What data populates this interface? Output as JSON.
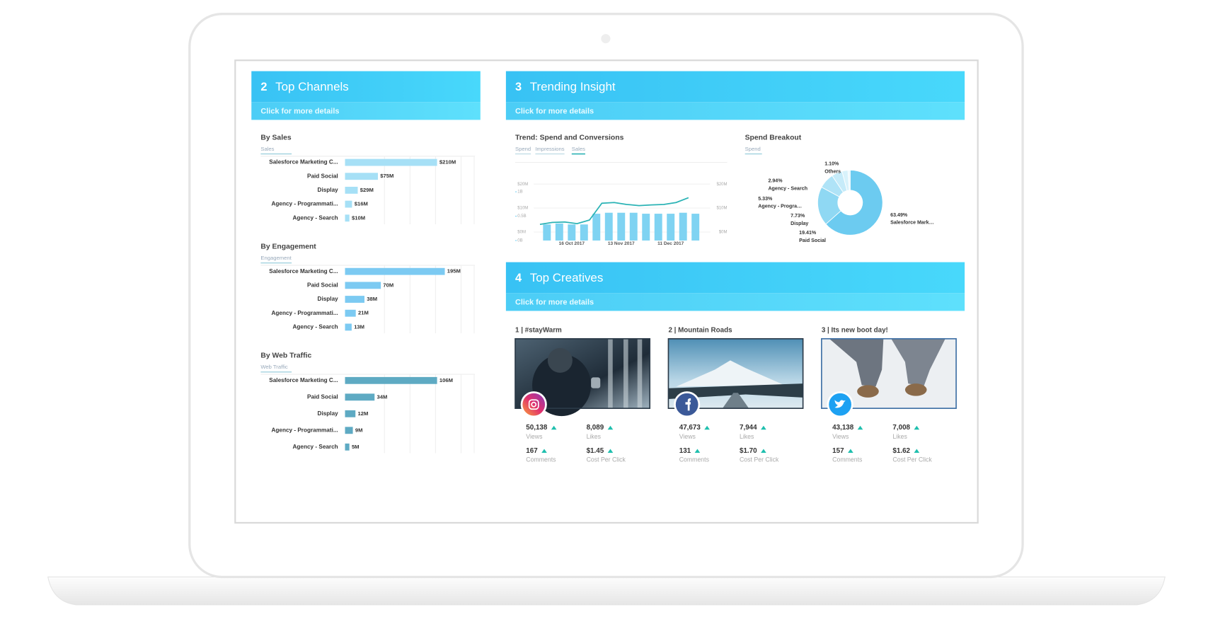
{
  "top_channels": {
    "number": "2",
    "title": "Top Channels",
    "link": "Click for more details",
    "charts": [
      {
        "type": "bar",
        "title": "By Sales",
        "subtitle": "Sales",
        "categories": [
          "Salesforce Marketing C...",
          "Paid Social",
          "Display",
          "Agency - Programmati...",
          "Agency - Search"
        ],
        "values": [
          210,
          75,
          29,
          16,
          10
        ],
        "value_labels": [
          "$210M",
          "$75M",
          "$29M",
          "$16M",
          "$10M"
        ],
        "color": "#a6e0f6"
      },
      {
        "type": "bar",
        "title": "By Engagement",
        "subtitle": "Engagement",
        "categories": [
          "Salesforce Marketing C...",
          "Paid Social",
          "Display",
          "Agency - Programmati...",
          "Agency - Search"
        ],
        "values": [
          195,
          70,
          38,
          21,
          13
        ],
        "value_labels": [
          "195M",
          "70M",
          "38M",
          "21M",
          "13M"
        ],
        "color": "#7ccaf2"
      },
      {
        "type": "bar",
        "title": "By Web Traffic",
        "subtitle": "Web Traffic",
        "categories": [
          "Salesforce Marketing C...",
          "Paid Social",
          "Display",
          "Agency - Programmati...",
          "Agency - Search"
        ],
        "values": [
          106,
          34,
          12,
          9,
          5
        ],
        "value_labels": [
          "106M",
          "34M",
          "12M",
          "9M",
          "5M"
        ],
        "color": "#5eaac3"
      }
    ]
  },
  "trending": {
    "number": "3",
    "title": "Trending Insight",
    "link": "Click for more details",
    "trend": {
      "type": "bar-line",
      "title": "Trend: Spend and Conversions",
      "tabs": [
        "Spend",
        "Impressions",
        "Sales"
      ],
      "categories": [
        null,
        null,
        "16 Oct 2017",
        null,
        null,
        null,
        "13 Nov 2017",
        null,
        null,
        null,
        "11 Dec 2017",
        null,
        null
      ],
      "ylim": [
        0,
        20
      ],
      "yticks": [
        {
          "value": 20,
          "label": "$20M"
        },
        {
          "value": 10,
          "label": "$10M"
        },
        {
          "value": 0,
          "label": "$0M"
        }
      ],
      "y2lim": [
        0,
        1
      ],
      "y2ticks": [
        {
          "value": 1,
          "label": "1B"
        },
        {
          "value": 0.5,
          "label": "0.5B"
        },
        {
          "value": 0,
          "label": "0B"
        }
      ],
      "right_yticks": [
        {
          "value": 20,
          "label": "$20M"
        },
        {
          "value": 10,
          "label": "$10M"
        },
        {
          "value": 0,
          "label": "$0M"
        }
      ],
      "series": [
        {
          "type": "bar",
          "axis": "y2",
          "color": "#7fd3f2",
          "values": [
            0.33,
            0.35,
            0.33,
            0.33,
            0.55,
            0.57,
            0.57,
            0.57,
            0.55,
            0.55,
            0.55,
            0.57,
            0.55
          ]
        },
        {
          "type": "line",
          "color": "#2bb3b5",
          "values": [
            3.2,
            4,
            4.2,
            3.5,
            5,
            12,
            12.3,
            11.5,
            11,
            11.3,
            11.5,
            12.3,
            14.3
          ]
        }
      ]
    },
    "pie": {
      "type": "pie",
      "title": "Spend Breakout",
      "subtitle": "Spend",
      "categories": [
        "Salesforce Mark…",
        "Paid Social",
        "Display",
        "Agency - Progra…",
        "Agency - Search",
        "Others"
      ],
      "values": [
        63.49,
        19.41,
        7.73,
        5.33,
        2.94,
        1.1
      ],
      "value_labels": [
        "63.49%",
        "19.41%",
        "7.73%",
        "5.33%",
        "2.94%",
        "1.10%"
      ],
      "colors": [
        "#6ccbf0",
        "#8fd8f3",
        "#afe3f7",
        "#c6ebf9",
        "#d8f2fb",
        "#e9f8fd"
      ]
    }
  },
  "creatives": {
    "number": "4",
    "title": "Top Creatives",
    "link": "Click for more details",
    "items": [
      {
        "title": "1 | #stayWarm",
        "stats": [
          {
            "value": "50,138",
            "label": "Views"
          },
          {
            "value": "8,089",
            "label": "Likes"
          },
          {
            "value": "167",
            "label": "Comments"
          },
          {
            "value": "$1.45",
            "label": "Cost Per Click"
          }
        ]
      },
      {
        "title": "2 | Mountain Roads",
        "stats": [
          {
            "value": "47,673",
            "label": "Views"
          },
          {
            "value": "7,944",
            "label": "Likes"
          },
          {
            "value": "131",
            "label": "Comments"
          },
          {
            "value": "$1.70",
            "label": "Cost Per Click"
          }
        ]
      },
      {
        "title": "3 | Its new boot day!",
        "stats": [
          {
            "value": "43,138",
            "label": "Views"
          },
          {
            "value": "7,008",
            "label": "Likes"
          },
          {
            "value": "157",
            "label": "Comments"
          },
          {
            "value": "$1.62",
            "label": "Cost Per Click"
          }
        ]
      }
    ]
  }
}
